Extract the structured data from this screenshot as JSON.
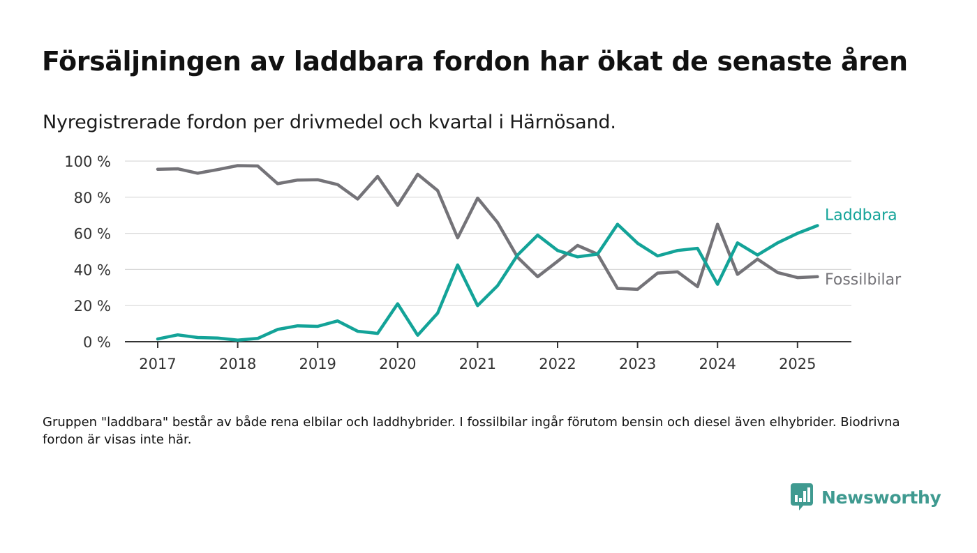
{
  "header": {
    "title": "Försäljningen av laddbara fordon har ökat de senaste åren",
    "subtitle": "Nyregistrerade fordon per drivmedel och kvartal i Härnösand."
  },
  "footnote": {
    "text": "Gruppen \"laddbara\" består av både rena elbilar och laddhybrider. I fossilbilar ingår förutom bensin och diesel även elhybrider. Biodrivna fordon är visas inte här."
  },
  "brand": {
    "name": "Newsworthy",
    "icon": "bar-chart-icon",
    "color": "#3f9a90"
  },
  "chart_data": {
    "type": "line",
    "title": "Försäljningen av laddbara fordon har ökat de senaste åren",
    "subtitle": "Nyregistrerade fordon per drivmedel och kvartal i Härnösand.",
    "xlabel": "",
    "ylabel": "",
    "x_ticks": [
      "2017",
      "2018",
      "2019",
      "2020",
      "2021",
      "2022",
      "2023",
      "2024",
      "2025"
    ],
    "y_ticks": [
      "0 %",
      "20 %",
      "40 %",
      "60 %",
      "80 %",
      "100 %"
    ],
    "ylim": [
      0,
      100
    ],
    "x": [
      "2017 Q1",
      "2017 Q2",
      "2017 Q3",
      "2017 Q4",
      "2018 Q1",
      "2018 Q2",
      "2018 Q3",
      "2018 Q4",
      "2019 Q1",
      "2019 Q2",
      "2019 Q3",
      "2019 Q4",
      "2020 Q1",
      "2020 Q2",
      "2020 Q3",
      "2020 Q4",
      "2021 Q1",
      "2021 Q2",
      "2021 Q3",
      "2021 Q4",
      "2022 Q1",
      "2022 Q2",
      "2022 Q3",
      "2022 Q4",
      "2023 Q1",
      "2023 Q2",
      "2023 Q3",
      "2023 Q4",
      "2024 Q1",
      "2024 Q2",
      "2024 Q3",
      "2024 Q4",
      "2025 Q1",
      "2025 Q2"
    ],
    "grid": true,
    "legend": "inline labels at right end of lines",
    "series": [
      {
        "name": "Laddbara",
        "color": "#13a398",
        "values": [
          1.5,
          3.8,
          2.3,
          2.0,
          0.9,
          1.8,
          6.8,
          8.8,
          8.5,
          11.5,
          5.8,
          4.6,
          21.0,
          3.6,
          15.8,
          42.5,
          20.0,
          31.0,
          48.0,
          59.0,
          50.5,
          47.0,
          48.5,
          65.0,
          54.5,
          47.5,
          50.5,
          51.7,
          31.8,
          54.7,
          48.0,
          54.7,
          60.0,
          64.3
        ]
      },
      {
        "name": "Fossilbilar",
        "color": "#747378",
        "values": [
          95.5,
          95.7,
          93.3,
          95.3,
          97.5,
          97.3,
          87.5,
          89.5,
          89.7,
          87.0,
          79.0,
          91.5,
          75.5,
          92.7,
          83.7,
          57.5,
          79.5,
          66.0,
          46.7,
          36.0,
          44.5,
          53.3,
          48.5,
          29.5,
          29.0,
          38.0,
          38.7,
          30.5,
          65.0,
          37.3,
          45.7,
          38.3,
          35.5,
          36.0
        ]
      }
    ]
  }
}
